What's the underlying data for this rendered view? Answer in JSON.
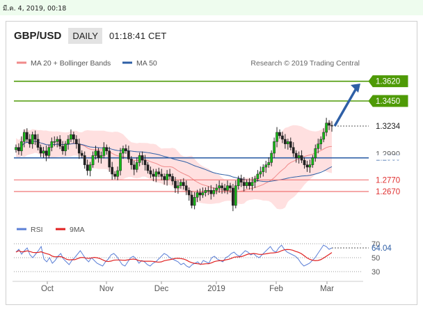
{
  "datebar": {
    "text": "มี.ค. 4, 2019, 00:18"
  },
  "header": {
    "symbol": "GBP/USD",
    "timeframe": "DAILY",
    "time": "01:18:41 CET"
  },
  "colors": {
    "green": "#4e9a06",
    "blue": "#2e5fa6",
    "bb": "#ffd6d6",
    "ma20": "#f08a8a",
    "red_level": "#f07474",
    "rsi": "#5b7fd6",
    "ma9": "#e02020",
    "up": "#18b818"
  },
  "chart_data": [
    {
      "type": "candlestick",
      "legend": [
        {
          "label": "MA 20 + Bollinger Bands",
          "color": "#f08a8a"
        },
        {
          "label": "MA 50",
          "color": "#2e5fa6"
        }
      ],
      "credit": "Research © 2019 Trading Central",
      "ylim": [
        1.24,
        1.372
      ],
      "last_price": "1.3234",
      "levels": [
        {
          "value": 1.362,
          "label": "1.3620",
          "kind": "resistance"
        },
        {
          "value": 1.345,
          "label": "1.3450",
          "kind": "resistance"
        },
        {
          "value": 1.296,
          "label": "1.2960",
          "kind": "pivot"
        },
        {
          "value": 1.277,
          "label": "1.2770",
          "kind": "support"
        },
        {
          "value": 1.267,
          "label": "1.2670",
          "kind": "support"
        }
      ],
      "hidden_label": "1.2990",
      "arrow": {
        "from": 1.3234,
        "to": 1.36
      },
      "close": [
        1.305,
        1.302,
        1.31,
        1.318,
        1.312,
        1.308,
        1.316,
        1.312,
        1.305,
        1.3,
        1.302,
        1.298,
        1.305,
        1.31,
        1.31,
        1.312,
        1.306,
        1.302,
        1.308,
        1.312,
        1.316,
        1.312,
        1.308,
        1.3,
        1.298,
        1.29,
        1.285,
        1.29,
        1.298,
        1.302,
        1.296,
        1.298,
        1.305,
        1.302,
        1.288,
        1.282,
        1.28,
        1.285,
        1.3,
        1.304,
        1.302,
        1.295,
        1.29,
        1.286,
        1.292,
        1.298,
        1.294,
        1.29,
        1.285,
        1.282,
        1.28,
        1.284,
        1.282,
        1.28,
        1.277,
        1.282,
        1.28,
        1.276,
        1.27,
        1.272,
        1.275,
        1.272,
        1.268,
        1.264,
        1.255,
        1.262,
        1.266,
        1.264,
        1.266,
        1.268,
        1.268,
        1.265,
        1.268,
        1.27,
        1.272,
        1.27,
        1.268,
        1.272,
        1.27,
        1.255,
        1.272,
        1.278,
        1.275,
        1.272,
        1.275,
        1.272,
        1.275,
        1.278,
        1.282,
        1.284,
        1.288,
        1.29,
        1.292,
        1.3,
        1.31,
        1.318,
        1.315,
        1.312,
        1.308,
        1.31,
        1.305,
        1.3,
        1.296,
        1.298,
        1.294,
        1.29,
        1.288,
        1.29,
        1.296,
        1.304,
        1.308,
        1.312,
        1.318,
        1.326,
        1.324,
        1.3234
      ],
      "x_ticks": [
        "Oct",
        "Nov",
        "Dec",
        "2019",
        "Feb",
        "Mar"
      ]
    },
    {
      "type": "line",
      "legend": [
        {
          "label": "RSI",
          "color": "#5b7fd6"
        },
        {
          "label": "9MA",
          "color": "#e02020"
        }
      ],
      "ylim": [
        20,
        80
      ],
      "y_ticks": [
        "70",
        "50",
        "30"
      ],
      "last_value": "64.04",
      "rsi": [
        58,
        62,
        55,
        60,
        64,
        54,
        50,
        55,
        60,
        66,
        48,
        44,
        50,
        42,
        46,
        52,
        56,
        48,
        44,
        40,
        46,
        50,
        55,
        60,
        54,
        48,
        44,
        50,
        46,
        42,
        40,
        38,
        44,
        48,
        54,
        56,
        52,
        46,
        40,
        38,
        44,
        50,
        52,
        48,
        42,
        46,
        44,
        40,
        38,
        42,
        44,
        48,
        52,
        56,
        54,
        50,
        48,
        46,
        44,
        40,
        42,
        38,
        36,
        40,
        42,
        44,
        40,
        46,
        44,
        42,
        50,
        52,
        48,
        46,
        44,
        50,
        52,
        56,
        58,
        54,
        52,
        56,
        60,
        58,
        54,
        56,
        52,
        50,
        54,
        58,
        62,
        66,
        60,
        58,
        64,
        68,
        62,
        58,
        56,
        54,
        52,
        48,
        42,
        38,
        40,
        42,
        46,
        50,
        56,
        62,
        68,
        66,
        62,
        64
      ]
    }
  ]
}
